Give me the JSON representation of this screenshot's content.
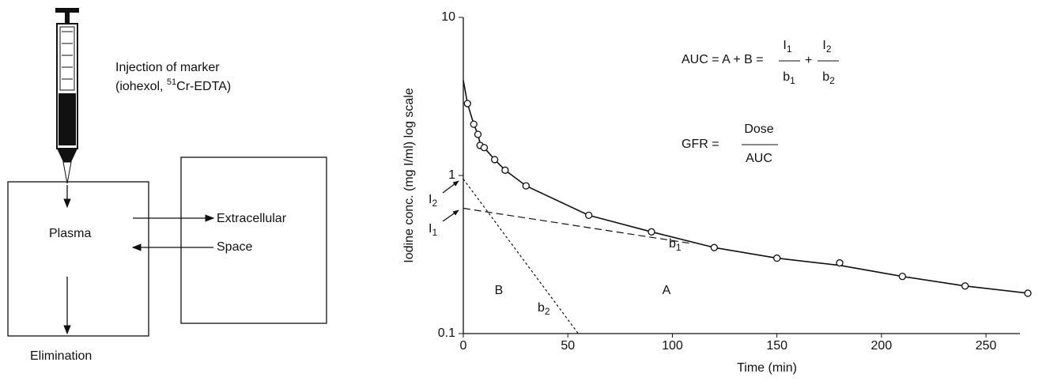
{
  "diagram": {
    "injection": {
      "line1": "Injection of marker",
      "line2_prefix": "(iohexol, ",
      "isotope_sup": "51",
      "line2_suffix": "Cr-EDTA)"
    },
    "plasma": "Plasma",
    "extracellular": {
      "line1": "Extracellular",
      "line2": "Space"
    },
    "elimination": "Elimination"
  },
  "chart_data": {
    "type": "line",
    "x_label": "Time (min)",
    "y_label": "Iodine conc. (mg I/ml) log scale",
    "xlim": [
      0,
      270
    ],
    "ylim": [
      0.1,
      10
    ],
    "xticks": [
      0,
      50,
      100,
      150,
      200,
      250
    ],
    "yticks": [
      0.1,
      1,
      10
    ],
    "log_y": true,
    "grid": false,
    "series": [
      {
        "style": "solid",
        "color": "#111",
        "x": [
          0,
          2,
          5,
          7,
          8,
          10,
          15,
          20,
          30,
          60,
          90,
          120,
          150,
          180,
          210,
          240,
          270
        ],
        "values": [
          4.0,
          2.85,
          2.11,
          1.82,
          1.6,
          1.5,
          1.26,
          1.08,
          0.86,
          0.56,
          0.44,
          0.35,
          0.3,
          0.27,
          0.23,
          0.2,
          0.18
        ]
      },
      {
        "style": "markers",
        "color": "#111",
        "x": [
          2,
          5,
          7,
          8,
          10,
          15,
          20,
          30,
          60,
          90,
          120,
          150,
          180,
          210,
          240,
          270
        ],
        "values": [
          2.85,
          2.11,
          1.82,
          1.55,
          1.5,
          1.26,
          1.08,
          0.86,
          0.56,
          0.44,
          0.35,
          0.3,
          0.28,
          0.23,
          0.2,
          0.18
        ]
      },
      {
        "style": "dashed",
        "color": "#111",
        "x": [
          0,
          110
        ],
        "values": [
          0.62,
          0.37
        ]
      },
      {
        "style": "dotted",
        "color": "#111",
        "x": [
          0,
          55
        ],
        "values": [
          0.95,
          0.1
        ]
      }
    ],
    "annotations": {
      "B": "B",
      "A": "A",
      "b1": {
        "text": "b",
        "sub": "1"
      },
      "b2": {
        "text": "b",
        "sub": "2"
      },
      "I1": {
        "text": "I",
        "sub": "1"
      },
      "I2": {
        "text": "I",
        "sub": "2"
      }
    },
    "auc": {
      "prefix": "AUC = A + B =",
      "plus": "+",
      "fractions": [
        {
          "num": "I",
          "num_sub": "1",
          "den": "b",
          "den_sub": "1"
        },
        {
          "num": "I",
          "num_sub": "2",
          "den": "b",
          "den_sub": "2"
        }
      ]
    },
    "gfr": {
      "prefix": "GFR =",
      "num": "Dose",
      "den": "AUC"
    }
  }
}
